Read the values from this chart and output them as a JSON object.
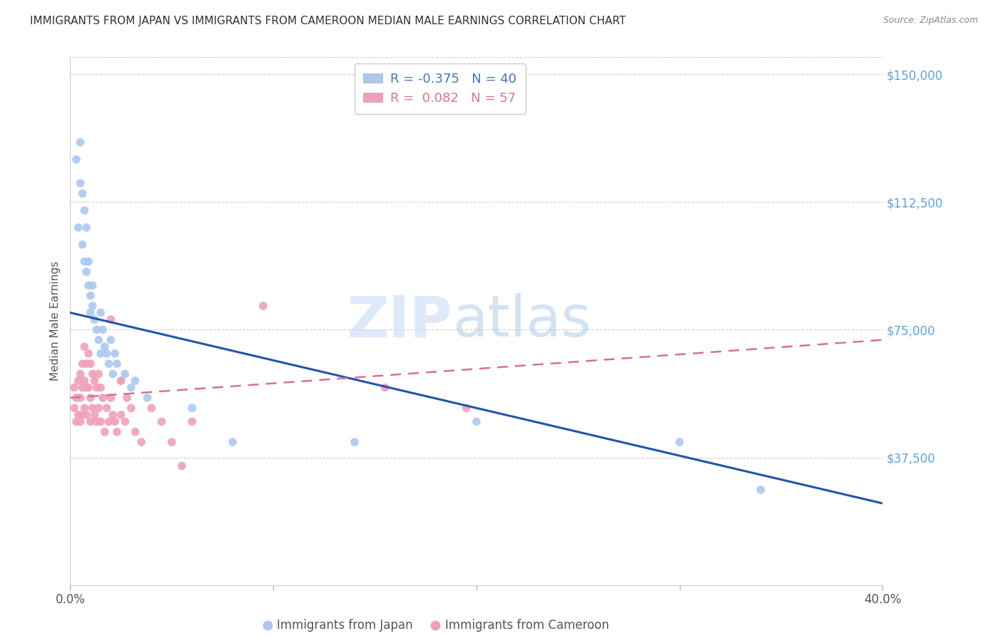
{
  "title": "IMMIGRANTS FROM JAPAN VS IMMIGRANTS FROM CAMEROON MEDIAN MALE EARNINGS CORRELATION CHART",
  "source": "Source: ZipAtlas.com",
  "ylabel": "Median Male Earnings",
  "xlim": [
    0.0,
    0.4
  ],
  "ylim": [
    0,
    155000
  ],
  "xticks": [
    0.0,
    0.1,
    0.2,
    0.3,
    0.4
  ],
  "xticklabels": [
    "0.0%",
    "",
    "",
    "",
    "40.0%"
  ],
  "yticks": [
    0,
    37500,
    75000,
    112500,
    150000
  ],
  "yticklabels": [
    "",
    "$37,500",
    "$75,000",
    "$112,500",
    "$150,000"
  ],
  "ytick_color": "#5ba3e0",
  "background_color": "#ffffff",
  "watermark_zip": "ZIP",
  "watermark_atlas": "atlas",
  "grid_color": "#cccccc",
  "legend_japan_label": "R = -0.375   N = 40",
  "legend_cameroon_label": "R =  0.082   N = 57",
  "japan_color": "#aac8f0",
  "cameroon_color": "#f0a0b8",
  "japan_line_color": "#2255aa",
  "cameroon_line_color": "#d87090",
  "japan_scatter_x": [
    0.003,
    0.004,
    0.005,
    0.005,
    0.006,
    0.006,
    0.007,
    0.007,
    0.008,
    0.008,
    0.009,
    0.009,
    0.01,
    0.01,
    0.011,
    0.011,
    0.012,
    0.013,
    0.014,
    0.015,
    0.015,
    0.016,
    0.017,
    0.018,
    0.019,
    0.02,
    0.021,
    0.022,
    0.023,
    0.025,
    0.027,
    0.03,
    0.032,
    0.038,
    0.06,
    0.08,
    0.14,
    0.2,
    0.3,
    0.34
  ],
  "japan_scatter_y": [
    125000,
    105000,
    130000,
    118000,
    115000,
    100000,
    110000,
    95000,
    92000,
    105000,
    88000,
    95000,
    85000,
    80000,
    88000,
    82000,
    78000,
    75000,
    72000,
    80000,
    68000,
    75000,
    70000,
    68000,
    65000,
    72000,
    62000,
    68000,
    65000,
    60000,
    62000,
    58000,
    60000,
    55000,
    52000,
    42000,
    42000,
    48000,
    42000,
    28000
  ],
  "cameroon_scatter_x": [
    0.002,
    0.002,
    0.003,
    0.003,
    0.004,
    0.004,
    0.005,
    0.005,
    0.005,
    0.006,
    0.006,
    0.006,
    0.007,
    0.007,
    0.007,
    0.008,
    0.008,
    0.008,
    0.009,
    0.009,
    0.01,
    0.01,
    0.01,
    0.011,
    0.011,
    0.012,
    0.012,
    0.013,
    0.013,
    0.014,
    0.014,
    0.015,
    0.015,
    0.016,
    0.017,
    0.018,
    0.019,
    0.02,
    0.02,
    0.021,
    0.022,
    0.023,
    0.025,
    0.025,
    0.027,
    0.028,
    0.03,
    0.032,
    0.035,
    0.04,
    0.045,
    0.05,
    0.055,
    0.06,
    0.095,
    0.155,
    0.195
  ],
  "cameroon_scatter_y": [
    58000,
    52000,
    55000,
    48000,
    60000,
    50000,
    62000,
    55000,
    48000,
    65000,
    58000,
    50000,
    70000,
    60000,
    52000,
    65000,
    58000,
    50000,
    68000,
    58000,
    65000,
    55000,
    48000,
    62000,
    52000,
    60000,
    50000,
    58000,
    48000,
    62000,
    52000,
    58000,
    48000,
    55000,
    45000,
    52000,
    48000,
    78000,
    55000,
    50000,
    48000,
    45000,
    60000,
    50000,
    48000,
    55000,
    52000,
    45000,
    42000,
    52000,
    48000,
    42000,
    35000,
    48000,
    82000,
    58000,
    52000
  ],
  "japan_trend_x": [
    0.0,
    0.4
  ],
  "japan_trend_y": [
    80000,
    24000
  ],
  "cameroon_trend_x": [
    0.0,
    0.4
  ],
  "cameroon_trend_y": [
    55000,
    72000
  ],
  "bottom_label_japan": "Immigrants from Japan",
  "bottom_label_cameroon": "Immigrants from Cameroon"
}
